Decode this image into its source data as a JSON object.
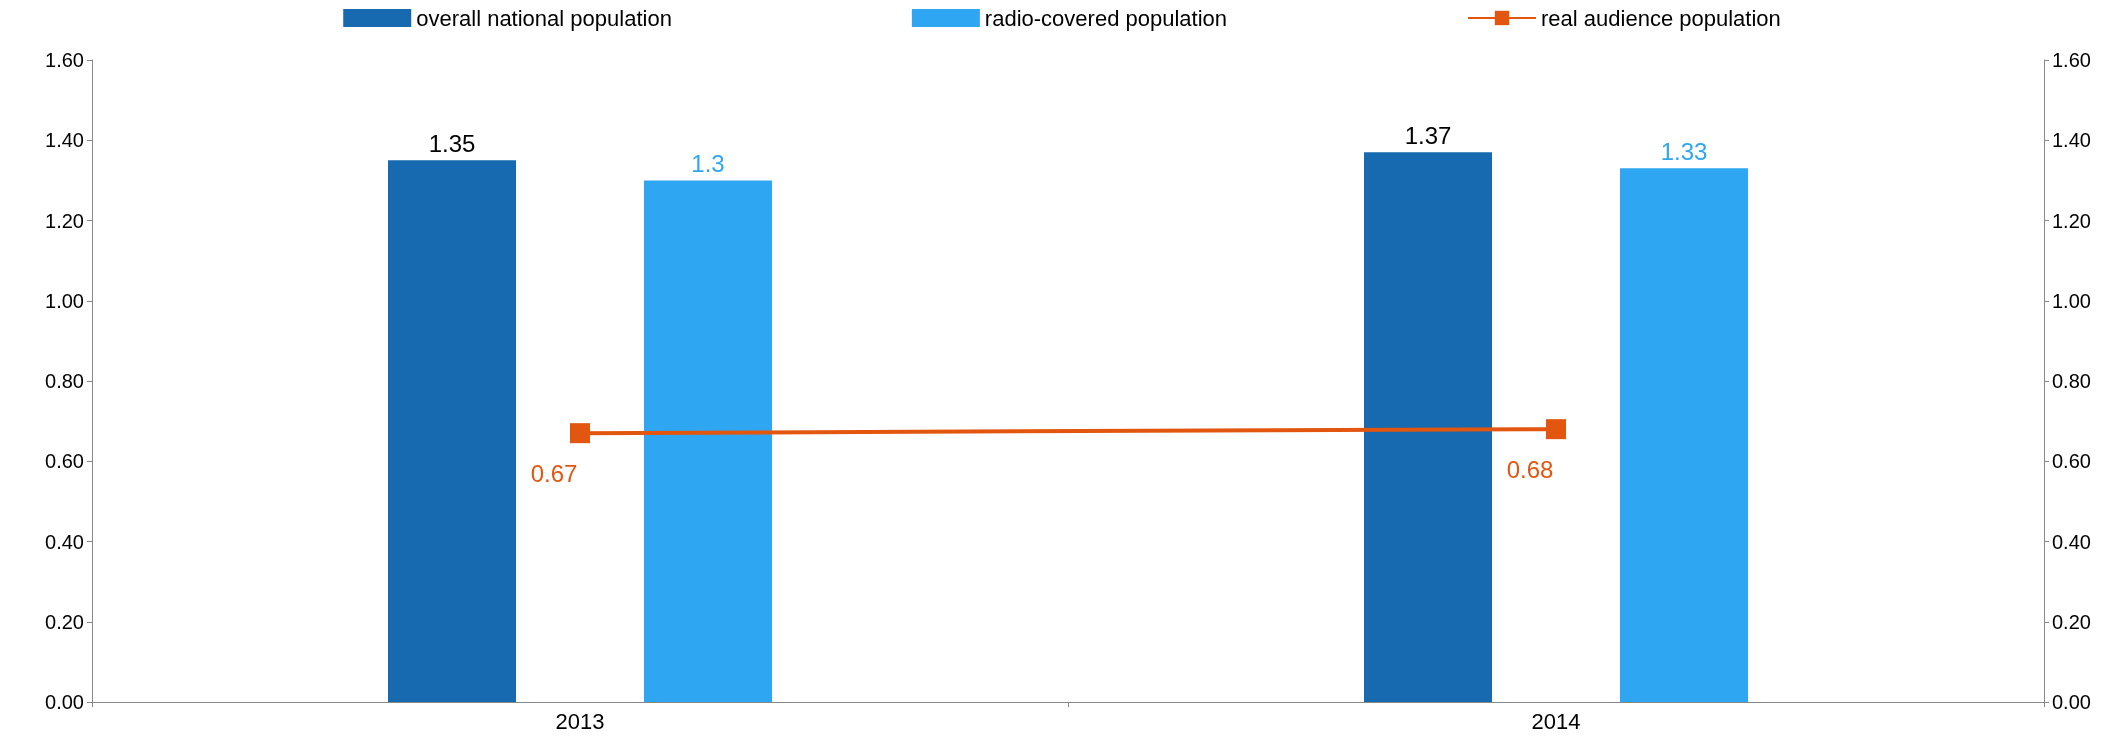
{
  "chart_data": {
    "type": "bar",
    "categories": [
      "2013",
      "2014"
    ],
    "series": [
      {
        "name": "overall national population",
        "color": "#1769b0",
        "values": [
          1.35,
          1.37
        ]
      },
      {
        "name": "radio-covered population",
        "color": "#2ea6f2",
        "values": [
          1.3,
          1.33
        ]
      },
      {
        "name": "real audience population",
        "type": "line",
        "axis": "y2",
        "color": "#e2560f",
        "values": [
          0.67,
          0.68
        ]
      }
    ],
    "ylim": [
      0,
      1.6
    ],
    "yticks": [
      {
        "value": 0,
        "label": "0.00"
      },
      {
        "value": 0.2,
        "label": "0.20"
      },
      {
        "value": 0.4,
        "label": "0.40"
      },
      {
        "value": 0.6,
        "label": "0.60"
      },
      {
        "value": 0.8,
        "label": "0.80"
      },
      {
        "value": 1.0,
        "label": "1.00"
      },
      {
        "value": 1.2,
        "label": "1.20"
      },
      {
        "value": 1.4,
        "label": "1.40"
      },
      {
        "value": 1.6,
        "label": "1.60"
      }
    ],
    "y2lim": [
      0,
      1.6
    ],
    "y2ticks": [
      {
        "value": 0,
        "label": "0.00"
      },
      {
        "value": 0.2,
        "label": "0.20"
      },
      {
        "value": 0.4,
        "label": "0.40"
      },
      {
        "value": 0.6,
        "label": "0.60"
      },
      {
        "value": 0.8,
        "label": "0.80"
      },
      {
        "value": 1.0,
        "label": "1.00"
      },
      {
        "value": 1.2,
        "label": "1.20"
      },
      {
        "value": 1.4,
        "label": "1.40"
      },
      {
        "value": 1.6,
        "label": "1.60"
      }
    ],
    "data_labels": true,
    "legend": "top",
    "grid": false,
    "marker": "square",
    "line_style": "solid"
  }
}
